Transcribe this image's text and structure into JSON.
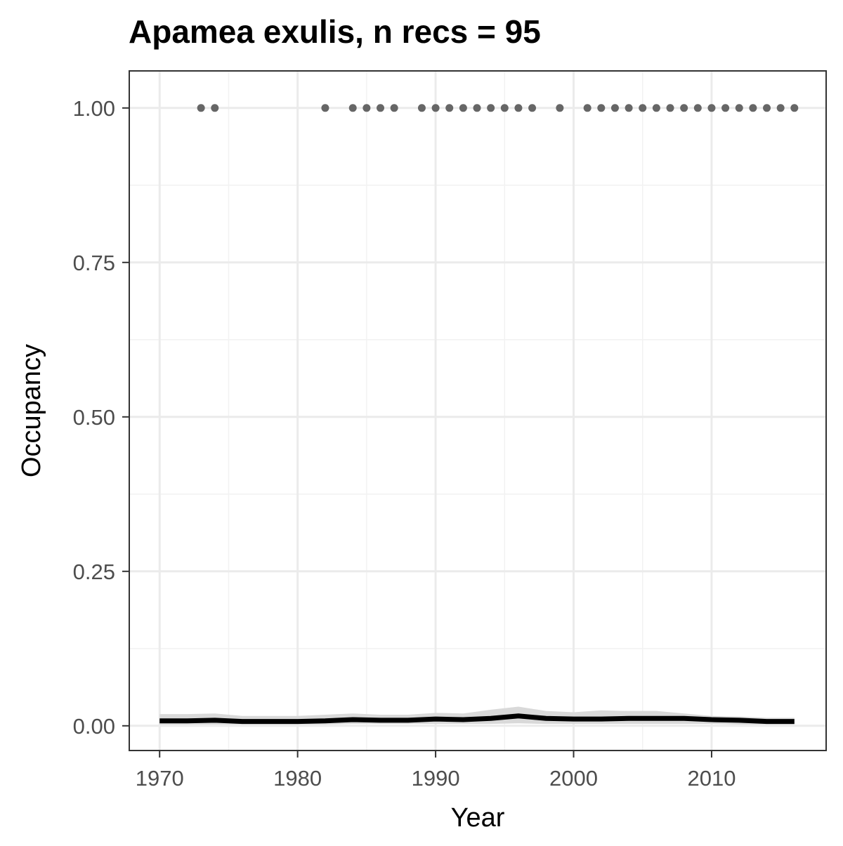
{
  "chart_data": {
    "type": "line",
    "title": "Apamea exulis, n recs = 95",
    "xlabel": "Year",
    "ylabel": "Occupancy",
    "xlim": [
      1967.8,
      2018.3
    ],
    "ylim": [
      -0.04,
      1.06
    ],
    "x_ticks": [
      1970,
      1980,
      1990,
      2000,
      2010
    ],
    "x_tick_labels": [
      "1970",
      "1980",
      "1990",
      "2000",
      "2010"
    ],
    "y_ticks": [
      0,
      0.25,
      0.5,
      0.75,
      1
    ],
    "y_tick_labels": [
      "0.00",
      "0.25",
      "0.50",
      "0.75",
      "1.00"
    ],
    "grid": true,
    "series": [
      {
        "kind": "observed-points",
        "color": "#666666",
        "x": [
          1973,
          1974,
          1982,
          1984,
          1985,
          1986,
          1987,
          1989,
          1990,
          1991,
          1992,
          1993,
          1994,
          1995,
          1996,
          1997,
          1999,
          2001,
          2002,
          2003,
          2004,
          2005,
          2006,
          2007,
          2008,
          2009,
          2010,
          2011,
          2012,
          2013,
          2014,
          2015,
          2016
        ],
        "y": [
          1,
          1,
          1,
          1,
          1,
          1,
          1,
          1,
          1,
          1,
          1,
          1,
          1,
          1,
          1,
          1,
          1,
          1,
          1,
          1,
          1,
          1,
          1,
          1,
          1,
          1,
          1,
          1,
          1,
          1,
          1,
          1,
          1
        ]
      },
      {
        "kind": "mean-line",
        "color": "#000000",
        "x": [
          1970,
          1972,
          1974,
          1976,
          1978,
          1980,
          1982,
          1984,
          1986,
          1988,
          1990,
          1992,
          1994,
          1996,
          1998,
          2000,
          2002,
          2004,
          2006,
          2008,
          2010,
          2012,
          2014,
          2016
        ],
        "y": [
          0.008,
          0.008,
          0.009,
          0.007,
          0.007,
          0.007,
          0.008,
          0.01,
          0.009,
          0.009,
          0.011,
          0.01,
          0.012,
          0.016,
          0.012,
          0.011,
          0.011,
          0.012,
          0.012,
          0.012,
          0.01,
          0.009,
          0.007,
          0.007
        ]
      },
      {
        "kind": "interval-band",
        "color": "#d9d9d9",
        "x": [
          1970,
          1972,
          1974,
          1976,
          1978,
          1980,
          1982,
          1984,
          1986,
          1988,
          1990,
          1992,
          1994,
          1996,
          1998,
          2000,
          2002,
          2004,
          2006,
          2008,
          2010,
          2012,
          2014,
          2016
        ],
        "lower": [
          0.002,
          0.002,
          0.002,
          0.002,
          0.002,
          0.002,
          0.002,
          0.003,
          0.003,
          0.003,
          0.003,
          0.003,
          0.003,
          0.004,
          0.003,
          0.003,
          0.003,
          0.003,
          0.003,
          0.003,
          0.003,
          0.002,
          0.002,
          0.002
        ],
        "upper": [
          0.019,
          0.019,
          0.02,
          0.016,
          0.016,
          0.016,
          0.018,
          0.02,
          0.018,
          0.018,
          0.021,
          0.02,
          0.026,
          0.031,
          0.024,
          0.022,
          0.025,
          0.024,
          0.024,
          0.02,
          0.016,
          0.015,
          0.013,
          0.013
        ]
      }
    ]
  }
}
